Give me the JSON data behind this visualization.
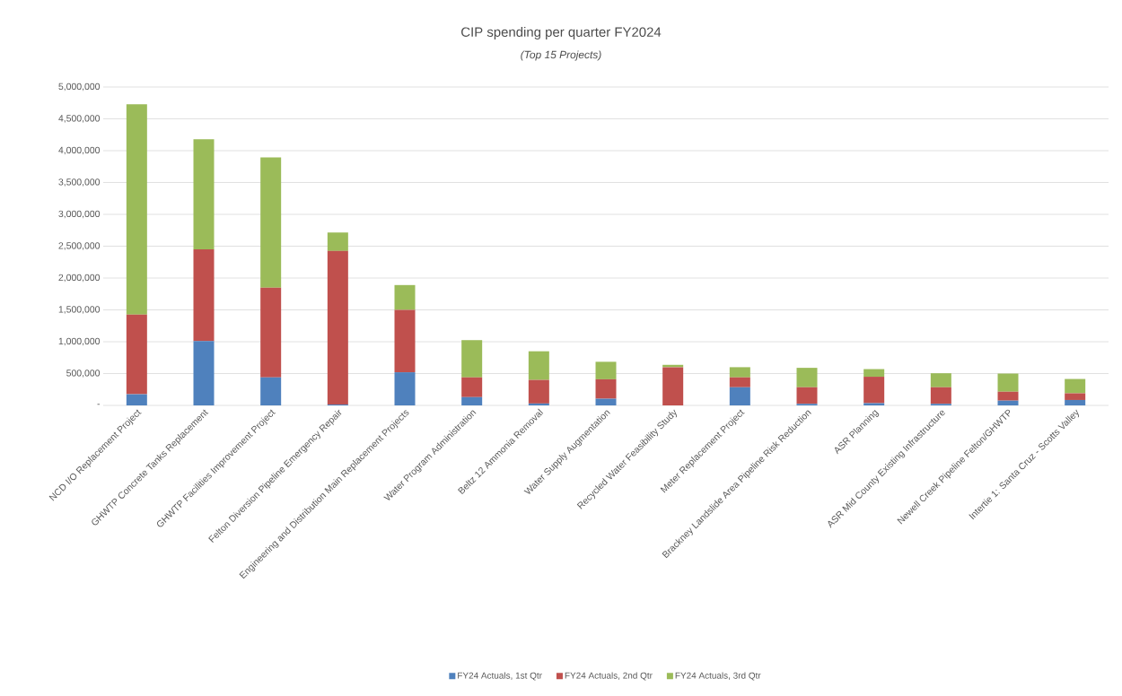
{
  "chart_data": {
    "type": "bar",
    "title": "CIP spending per quarter FY2024",
    "subtitle": "(Top 15 Projects)",
    "categories": [
      "NCD I/O Replacement Project",
      "GHWTP Concrete Tanks Replacement",
      "GHWTP Facilities Improvement Project",
      "Felton Diversion Pipeline Emergency Repair",
      "Engineering and Distribution Main Replacement Projects",
      "Water Program Administration",
      "Beltz 12 Ammonia Removal",
      "Water Supply Augmentation",
      "Recycled Water Feasibility Study",
      "Meter Replacement Project",
      "Brackney Landslide Area Pipeline Risk Reduction",
      "ASR Planning",
      "ASR Mid County Existing Infrastructure",
      "Newell Creek Pipeline Felton/GHWTP",
      "Intertie 1: Santa Cruz - Scotts Valley"
    ],
    "series": [
      {
        "name": "FY24 Actuals, 1st Qtr",
        "color": "#4f81bd",
        "values": [
          175000,
          1010000,
          440000,
          15000,
          520000,
          130000,
          30000,
          105000,
          0,
          285000,
          25000,
          35000,
          25000,
          75000,
          85000
        ]
      },
      {
        "name": "FY24 Actuals, 2nd Qtr",
        "color": "#c0504d",
        "values": [
          1250000,
          1440000,
          1410000,
          2410000,
          980000,
          310000,
          370000,
          305000,
          600000,
          155000,
          260000,
          415000,
          260000,
          140000,
          105000
        ]
      },
      {
        "name": "FY24 Actuals, 3rd Qtr",
        "color": "#9bbb59",
        "values": [
          3305000,
          1730000,
          2045000,
          290000,
          390000,
          585000,
          450000,
          275000,
          37000,
          160000,
          305000,
          120000,
          220000,
          285000,
          225000
        ]
      }
    ],
    "stacked": true,
    "ylim": [
      0,
      5000000
    ],
    "yticks": [
      {
        "value": 0,
        "label": "-"
      },
      {
        "value": 500000,
        "label": "500,000"
      },
      {
        "value": 1000000,
        "label": "1,000,000"
      },
      {
        "value": 1500000,
        "label": "1,500,000"
      },
      {
        "value": 2000000,
        "label": "2,000,000"
      },
      {
        "value": 2500000,
        "label": "2,500,000"
      },
      {
        "value": 3000000,
        "label": "3,000,000"
      },
      {
        "value": 3500000,
        "label": "3,500,000"
      },
      {
        "value": 4000000,
        "label": "4,000,000"
      },
      {
        "value": 4500000,
        "label": "4,500,000"
      },
      {
        "value": 5000000,
        "label": "5,000,000"
      }
    ],
    "grid": "y",
    "legend": "bottom"
  }
}
